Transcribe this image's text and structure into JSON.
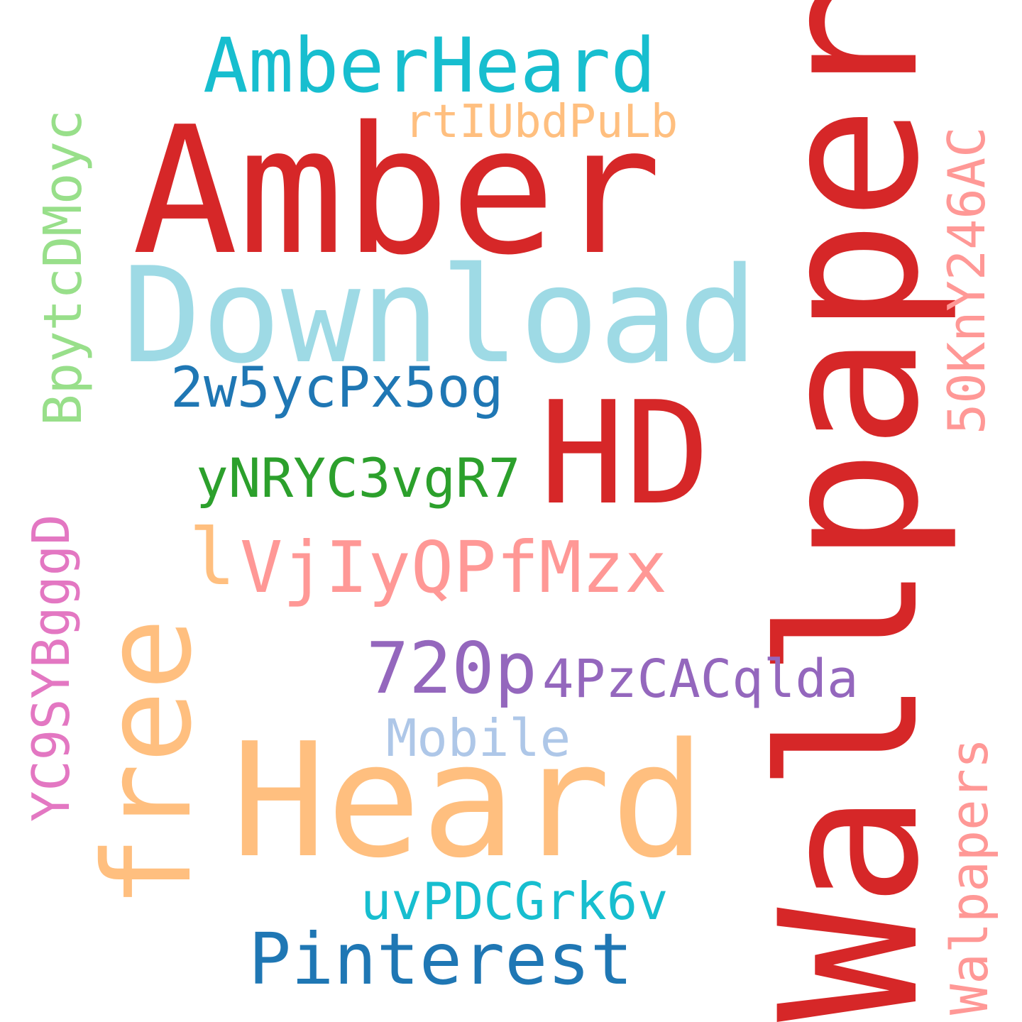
{
  "word_cloud": {
    "background": "#ffffff",
    "words": [
      {
        "text": "Wallpaper",
        "color": "#d62728",
        "orientation": "vertical"
      },
      {
        "text": "Amber",
        "color": "#d62728",
        "orientation": "horizontal"
      },
      {
        "text": "Heard",
        "color": "#ffbf7f",
        "orientation": "horizontal"
      },
      {
        "text": "Download",
        "color": "#9edae5",
        "orientation": "horizontal"
      },
      {
        "text": "HD",
        "color": "#d62728",
        "orientation": "horizontal"
      },
      {
        "text": "free",
        "color": "#ffbf7f",
        "orientation": "vertical"
      },
      {
        "text": "AmberHeard",
        "color": "#17becf",
        "orientation": "horizontal"
      },
      {
        "text": "VjIyQPfMzx",
        "color": "#ff9896",
        "orientation": "horizontal"
      },
      {
        "text": "l",
        "color": "#ffbf7f",
        "orientation": "horizontal"
      },
      {
        "text": "720p",
        "color": "#9467bd",
        "orientation": "horizontal"
      },
      {
        "text": "Pinterest",
        "color": "#1f77b4",
        "orientation": "horizontal"
      },
      {
        "text": "2w5ycPx5og",
        "color": "#1f77b4",
        "orientation": "horizontal"
      },
      {
        "text": "yNRYC3vgR7",
        "color": "#2ca02c",
        "orientation": "horizontal"
      },
      {
        "text": "4PzCACqlda",
        "color": "#9467bd",
        "orientation": "horizontal"
      },
      {
        "text": "BpytcDMoyc",
        "color": "#98df8a",
        "orientation": "vertical"
      },
      {
        "text": "50KnY246AC",
        "color": "#ff9896",
        "orientation": "vertical"
      },
      {
        "text": "YC9SYBgggD",
        "color": "#e377c2",
        "orientation": "vertical"
      },
      {
        "text": "uvPDCGrk6v",
        "color": "#17becf",
        "orientation": "horizontal"
      },
      {
        "text": "Mobile",
        "color": "#aec7e8",
        "orientation": "horizontal"
      },
      {
        "text": "rtIUbdPuLb",
        "color": "#ffbf7f",
        "orientation": "horizontal"
      },
      {
        "text": "Walpapers",
        "color": "#ff9896",
        "orientation": "vertical"
      }
    ]
  }
}
